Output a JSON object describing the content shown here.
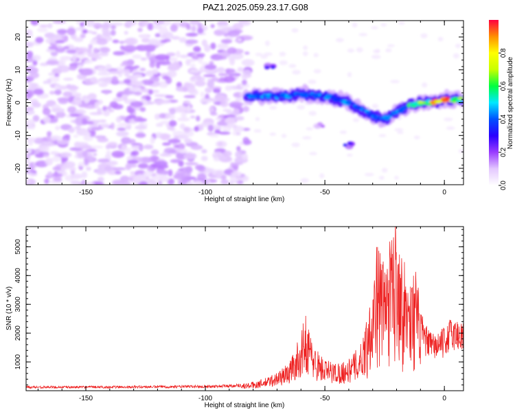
{
  "title": "PAZ1.2025.059.23.17.G08",
  "chart_data": [
    {
      "type": "heatmap",
      "xlabel": "Height of straight line (km)",
      "ylabel": "Frequency (Hz)",
      "xlim": [
        -175,
        8
      ],
      "ylim": [
        -25,
        25
      ],
      "xticks": [
        -150,
        -100,
        -50,
        0
      ],
      "yticks": [
        -20,
        -10,
        0,
        10,
        20
      ],
      "colorbar": {
        "label": "Normalized spectral amplitude",
        "range": [
          0,
          1
        ],
        "ticks": [
          0.0,
          0.2,
          0.4,
          0.6,
          0.8
        ],
        "colors": [
          "#ffffff",
          "#e4c8ff",
          "#9a3cff",
          "#2a00ff",
          "#0050ff",
          "#00e8ff",
          "#00ff40",
          "#c8ff00",
          "#ffff00",
          "#ff9000",
          "#ff0040"
        ]
      },
      "ridge": {
        "description_points": [
          [
            -82,
            2
          ],
          [
            -70,
            2
          ],
          [
            -60,
            2.5
          ],
          [
            -50,
            2
          ],
          [
            -45,
            1
          ],
          [
            -40,
            0
          ],
          [
            -35,
            -2
          ],
          [
            -30,
            -4
          ],
          [
            -25,
            -5
          ],
          [
            -20,
            -3
          ],
          [
            -15,
            -1
          ],
          [
            -10,
            0
          ],
          [
            -5,
            0
          ],
          [
            0,
            1
          ],
          [
            5,
            1
          ]
        ]
      },
      "blobs": [
        {
          "x": -73,
          "y": 11,
          "amp": 0.3
        },
        {
          "x": -40,
          "y": -13,
          "amp": 0.3
        },
        {
          "x": -52,
          "y": -7,
          "amp": 0.15
        }
      ]
    },
    {
      "type": "line",
      "xlabel": "Height of straight line (km)",
      "ylabel": "SNR (10 * v/v)",
      "xlim": [
        -175,
        8
      ],
      "ylim": [
        0,
        5700
      ],
      "xticks": [
        -150,
        -100,
        -50,
        0
      ],
      "yticks": [
        1000,
        2000,
        3000,
        4000,
        5000
      ],
      "color": "#ee2222",
      "envelope": [
        [
          -175,
          150
        ],
        [
          -150,
          150
        ],
        [
          -125,
          160
        ],
        [
          -100,
          180
        ],
        [
          -90,
          200
        ],
        [
          -82,
          250
        ],
        [
          -75,
          400
        ],
        [
          -70,
          600
        ],
        [
          -65,
          900
        ],
        [
          -60,
          1800
        ],
        [
          -58,
          2500
        ],
        [
          -55,
          1500
        ],
        [
          -50,
          1000
        ],
        [
          -45,
          900
        ],
        [
          -40,
          1000
        ],
        [
          -35,
          1500
        ],
        [
          -32,
          2500
        ],
        [
          -30,
          3500
        ],
        [
          -28,
          4800
        ],
        [
          -25,
          4000
        ],
        [
          -22,
          5000
        ],
        [
          -20,
          5700
        ],
        [
          -18,
          4500
        ],
        [
          -15,
          3500
        ],
        [
          -12,
          3900
        ],
        [
          -10,
          2700
        ],
        [
          -8,
          2200
        ],
        [
          -5,
          1900
        ],
        [
          -2,
          2000
        ],
        [
          0,
          2100
        ],
        [
          3,
          2500
        ],
        [
          5,
          2400
        ],
        [
          8,
          2400
        ]
      ]
    }
  ]
}
